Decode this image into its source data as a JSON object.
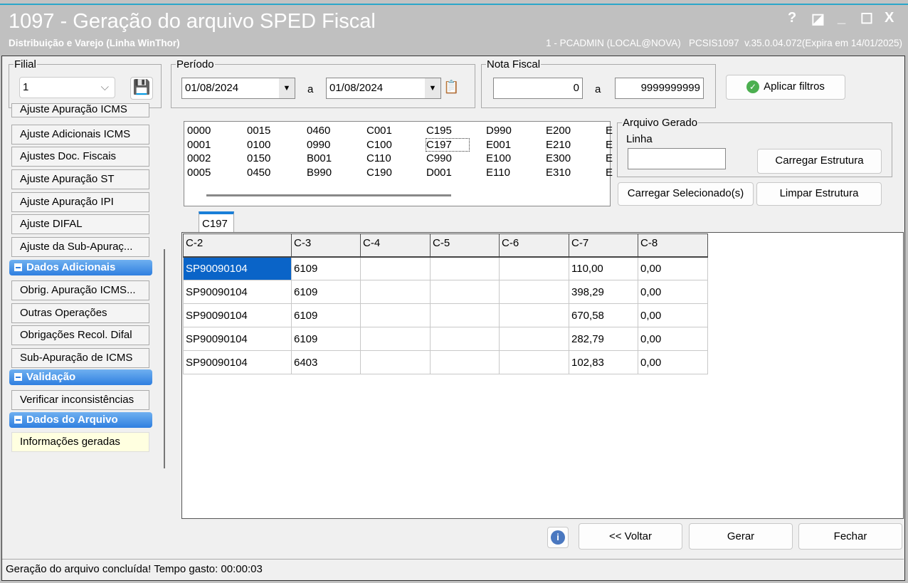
{
  "window": {
    "title": "1097 - Geração do arquivo SPED Fiscal",
    "subtitle": "Distribuição e Varejo (Linha WinThor)",
    "user_info": "1 - PCADMIN (LOCAL@NOVA)   PCSIS1097  v.35.0.04.072(Expira em 14/01/2025)",
    "controls": {
      "help": "?",
      "restore": "◪",
      "minimize": "_",
      "maximize": "☐",
      "close": "X"
    }
  },
  "filters": {
    "filial_label": "Filial",
    "filial_value": "1",
    "periodo_label": "Período",
    "date_from": "01/08/2024",
    "date_sep": "a",
    "date_to": "01/08/2024",
    "nota_label": "Nota Fiscal",
    "nota_from": "0",
    "nota_sep": "a",
    "nota_to": "9999999999",
    "apply_label": "Aplicar filtros"
  },
  "sidebar": {
    "items_top": [
      "Ajuste Apuração ICMS",
      "Ajuste Adicionais ICMS",
      "Ajustes Doc. Fiscais",
      "Ajuste Apuração ST",
      "Ajuste Apuração IPI",
      "Ajuste DIFAL",
      "Ajuste da Sub-Apuraç..."
    ],
    "group_dados_adicionais": "Dados Adicionais",
    "items_dados": [
      "Obrig. Apuração ICMS...",
      "Outras Operações",
      "Obrigações Recol. Difal",
      "Sub-Apuração de ICMS"
    ],
    "group_validacao": "Validação",
    "items_validacao": [
      "Verificar inconsistências"
    ],
    "group_arquivo": "Dados do Arquivo",
    "items_arquivo": [
      "Informações geradas"
    ]
  },
  "registros": {
    "columns": [
      [
        "0000",
        "0001",
        "0002",
        "0005"
      ],
      [
        "0015",
        "0100",
        "0150",
        "0450"
      ],
      [
        "0460",
        "0990",
        "B001",
        "B990"
      ],
      [
        "C001",
        "C100",
        "C110",
        "C190"
      ],
      [
        "C195",
        "C197",
        "C990",
        "D001"
      ],
      [
        "D990",
        "E001",
        "E100",
        "E110"
      ],
      [
        "E200",
        "E210",
        "E300",
        "E310"
      ],
      [
        "E",
        "E",
        "E",
        "E"
      ]
    ],
    "selected": "C197"
  },
  "arquivo": {
    "group_label": "Arquivo Gerado",
    "linha_label": "Linha",
    "linha_value": "",
    "carregar_estrutura": "Carregar Estrutura",
    "carregar_selecionados": "Carregar Selecionado(s)",
    "limpar_estrutura": "Limpar Estrutura"
  },
  "tab": {
    "label": "C197"
  },
  "grid": {
    "headers": [
      "C-2",
      "C-3",
      "C-4",
      "C-5",
      "C-6",
      "C-7",
      "C-8"
    ],
    "rows": [
      [
        "SP90090104",
        "6109",
        "",
        "",
        "",
        "110,00",
        "0,00"
      ],
      [
        "SP90090104",
        "6109",
        "",
        "",
        "",
        "398,29",
        "0,00"
      ],
      [
        "SP90090104",
        "6109",
        "",
        "",
        "",
        "670,58",
        "0,00"
      ],
      [
        "SP90090104",
        "6109",
        "",
        "",
        "",
        "282,79",
        "0,00"
      ],
      [
        "SP90090104",
        "6403",
        "",
        "",
        "",
        "102,83",
        "0,00"
      ]
    ]
  },
  "footer": {
    "voltar": "<< Voltar",
    "gerar": "Gerar",
    "fechar": "Fechar",
    "status": "Geração do arquivo concluída! Tempo gasto: 00:00:03"
  },
  "colors": {
    "accent": "#2f7fe0",
    "selection": "#0a64c8",
    "titlebar": "#c0c0c0"
  }
}
